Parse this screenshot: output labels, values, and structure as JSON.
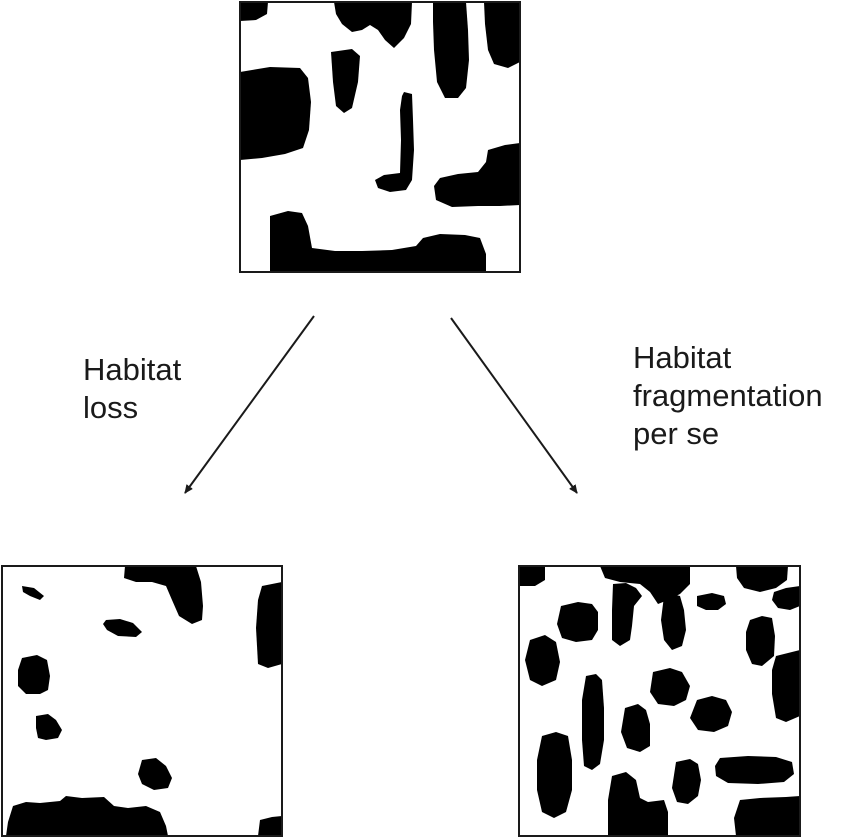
{
  "labels": {
    "habitat_loss": [
      "Habitat",
      "loss"
    ],
    "habitat_fragmentation": [
      "Habitat",
      "fragmentation",
      "per se"
    ]
  },
  "colors": {
    "habitat": "#000000",
    "matrix": "#ffffff",
    "border": "#1a1a1a",
    "arrow": "#1a1a1a"
  }
}
